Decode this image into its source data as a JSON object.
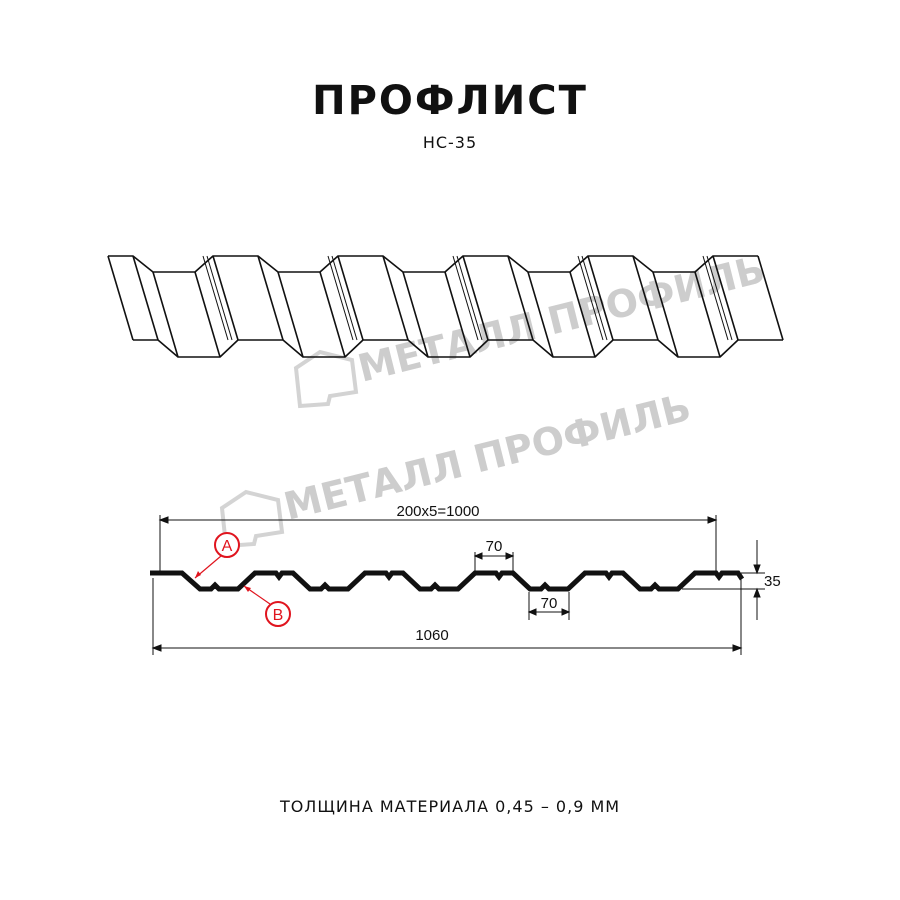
{
  "title": "ПРОФЛИСТ",
  "subtitle": "НС-35",
  "watermark": "МЕТАЛЛ ПРОФИЛЬ",
  "dimensions": {
    "pitch_total": "200x5=1000",
    "top_flat": "70",
    "bottom_flat": "70",
    "height": "35",
    "full_width": "1060"
  },
  "callouts": {
    "a": "A",
    "b": "B"
  },
  "colors": {
    "line": "#111111",
    "callout": "#e0141e",
    "watermark": "#c8c8c8"
  },
  "footer": "ТОЛЩИНА МАТЕРИАЛА 0,45 – 0,9 ММ"
}
